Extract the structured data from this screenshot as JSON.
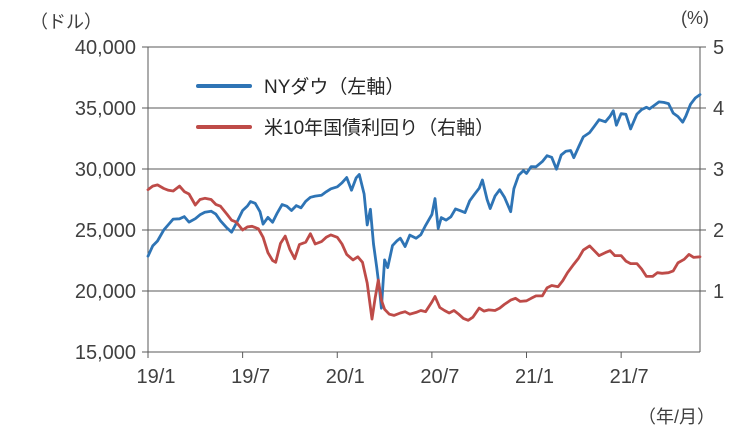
{
  "chart_data": {
    "type": "line",
    "title": "",
    "x_unit_note": "x values are months since 2019-01",
    "x_max": 35,
    "x_axis_unit": "（年/月）",
    "x_ticks": [
      {
        "t": 0,
        "label": "19/1"
      },
      {
        "t": 6,
        "label": "19/7"
      },
      {
        "t": 12,
        "label": "20/1"
      },
      {
        "t": 18,
        "label": "20/7"
      },
      {
        "t": 24,
        "label": "21/1"
      },
      {
        "t": 30,
        "label": "21/7"
      }
    ],
    "left_axis": {
      "unit": "（ドル）",
      "lim": [
        15000,
        40000
      ],
      "ticks": [
        {
          "v": 40000,
          "label": "40,000"
        },
        {
          "v": 35000,
          "label": "35,000"
        },
        {
          "v": 30000,
          "label": "30,000"
        },
        {
          "v": 25000,
          "label": "25,000"
        },
        {
          "v": 20000,
          "label": "20,000"
        },
        {
          "v": 15000,
          "label": "15,000"
        }
      ]
    },
    "right_axis": {
      "unit": "(%)",
      "lim": [
        0,
        5
      ],
      "ticks": [
        {
          "v": 5,
          "label": "5"
        },
        {
          "v": 4,
          "label": "4"
        },
        {
          "v": 3,
          "label": "3"
        },
        {
          "v": 2,
          "label": "2"
        },
        {
          "v": 1,
          "label": "1"
        }
      ]
    },
    "grid": "horizontal",
    "legend_position": "top-center-inside",
    "colors": {
      "grid": "#595959",
      "text": "#404040"
    },
    "series": [
      {
        "id": "nydow",
        "name": "NYダウ（左軸）",
        "axis": "left",
        "color": "#2E74B5",
        "points": [
          [
            0,
            22850
          ],
          [
            0.3,
            23700
          ],
          [
            0.6,
            24100
          ],
          [
            1,
            25010
          ],
          [
            1.3,
            25450
          ],
          [
            1.6,
            25890
          ],
          [
            2,
            25920
          ],
          [
            2.3,
            26100
          ],
          [
            2.6,
            25650
          ],
          [
            3,
            25930
          ],
          [
            3.3,
            26250
          ],
          [
            3.6,
            26450
          ],
          [
            4,
            26540
          ],
          [
            4.3,
            26300
          ],
          [
            4.6,
            25750
          ],
          [
            5,
            25170
          ],
          [
            5.3,
            24820
          ],
          [
            5.6,
            25540
          ],
          [
            6,
            26600
          ],
          [
            6.3,
            26970
          ],
          [
            6.5,
            27330
          ],
          [
            6.8,
            27190
          ],
          [
            7.1,
            26500
          ],
          [
            7.3,
            25480
          ],
          [
            7.6,
            26030
          ],
          [
            7.9,
            25630
          ],
          [
            8.2,
            26400
          ],
          [
            8.5,
            27080
          ],
          [
            8.8,
            26950
          ],
          [
            9.1,
            26600
          ],
          [
            9.4,
            27000
          ],
          [
            9.7,
            26820
          ],
          [
            10,
            27350
          ],
          [
            10.3,
            27680
          ],
          [
            10.6,
            27780
          ],
          [
            11,
            27850
          ],
          [
            11.3,
            28130
          ],
          [
            11.6,
            28380
          ],
          [
            12,
            28540
          ],
          [
            12.3,
            28870
          ],
          [
            12.6,
            29300
          ],
          [
            12.9,
            28260
          ],
          [
            13.2,
            29280
          ],
          [
            13.4,
            29550
          ],
          [
            13.7,
            27960
          ],
          [
            13.9,
            25410
          ],
          [
            14.1,
            26700
          ],
          [
            14.3,
            23850
          ],
          [
            14.5,
            21950
          ],
          [
            14.7,
            19900
          ],
          [
            14.8,
            18590
          ],
          [
            15,
            22550
          ],
          [
            15.2,
            21920
          ],
          [
            15.5,
            23720
          ],
          [
            15.8,
            24130
          ],
          [
            16,
            24330
          ],
          [
            16.3,
            23650
          ],
          [
            16.6,
            24580
          ],
          [
            17,
            24330
          ],
          [
            17.3,
            24610
          ],
          [
            17.6,
            25380
          ],
          [
            18,
            26270
          ],
          [
            18.2,
            27570
          ],
          [
            18.4,
            25130
          ],
          [
            18.6,
            26020
          ],
          [
            18.9,
            25810
          ],
          [
            19.2,
            26070
          ],
          [
            19.5,
            26730
          ],
          [
            19.8,
            26580
          ],
          [
            20.1,
            26430
          ],
          [
            20.4,
            27390
          ],
          [
            20.7,
            27930
          ],
          [
            21,
            28430
          ],
          [
            21.2,
            29100
          ],
          [
            21.5,
            27500
          ],
          [
            21.7,
            26760
          ],
          [
            22,
            27780
          ],
          [
            22.3,
            28300
          ],
          [
            22.6,
            27700
          ],
          [
            23,
            26500
          ],
          [
            23.2,
            28390
          ],
          [
            23.5,
            29480
          ],
          [
            23.8,
            29870
          ],
          [
            24,
            29640
          ],
          [
            24.3,
            30200
          ],
          [
            24.6,
            30180
          ],
          [
            25,
            30610
          ],
          [
            25.3,
            31090
          ],
          [
            25.6,
            30960
          ],
          [
            25.9,
            29980
          ],
          [
            26.2,
            31150
          ],
          [
            26.5,
            31460
          ],
          [
            26.8,
            31520
          ],
          [
            27,
            30930
          ],
          [
            27.3,
            31800
          ],
          [
            27.6,
            32630
          ],
          [
            28,
            32980
          ],
          [
            28.3,
            33500
          ],
          [
            28.6,
            34040
          ],
          [
            29,
            33870
          ],
          [
            29.3,
            34330
          ],
          [
            29.5,
            34780
          ],
          [
            29.7,
            33590
          ],
          [
            30,
            34530
          ],
          [
            30.3,
            34480
          ],
          [
            30.6,
            33290
          ],
          [
            31,
            34500
          ],
          [
            31.3,
            34870
          ],
          [
            31.6,
            35060
          ],
          [
            31.8,
            34930
          ],
          [
            32.1,
            35210
          ],
          [
            32.4,
            35500
          ],
          [
            32.7,
            35460
          ],
          [
            33,
            35360
          ],
          [
            33.3,
            34580
          ],
          [
            33.6,
            34300
          ],
          [
            33.9,
            33840
          ],
          [
            34.1,
            34330
          ],
          [
            34.4,
            35300
          ],
          [
            34.7,
            35820
          ],
          [
            35,
            36100
          ]
        ]
      },
      {
        "id": "us10y",
        "name": "米10年国債利回り（右軸）",
        "axis": "right",
        "color": "#BE4B48",
        "points": [
          [
            0,
            2.66
          ],
          [
            0.3,
            2.72
          ],
          [
            0.6,
            2.74
          ],
          [
            1,
            2.68
          ],
          [
            1.3,
            2.65
          ],
          [
            1.6,
            2.64
          ],
          [
            2,
            2.72
          ],
          [
            2.3,
            2.63
          ],
          [
            2.6,
            2.59
          ],
          [
            3,
            2.41
          ],
          [
            3.3,
            2.5
          ],
          [
            3.6,
            2.52
          ],
          [
            4,
            2.5
          ],
          [
            4.3,
            2.42
          ],
          [
            4.6,
            2.39
          ],
          [
            5,
            2.26
          ],
          [
            5.3,
            2.16
          ],
          [
            5.6,
            2.13
          ],
          [
            6,
            2.0
          ],
          [
            6.3,
            2.05
          ],
          [
            6.6,
            2.06
          ],
          [
            7,
            2.02
          ],
          [
            7.3,
            1.88
          ],
          [
            7.6,
            1.63
          ],
          [
            7.9,
            1.5
          ],
          [
            8.1,
            1.47
          ],
          [
            8.4,
            1.78
          ],
          [
            8.7,
            1.9
          ],
          [
            9,
            1.68
          ],
          [
            9.3,
            1.53
          ],
          [
            9.6,
            1.76
          ],
          [
            10,
            1.8
          ],
          [
            10.3,
            1.94
          ],
          [
            10.6,
            1.77
          ],
          [
            11,
            1.81
          ],
          [
            11.3,
            1.88
          ],
          [
            11.6,
            1.92
          ],
          [
            12,
            1.88
          ],
          [
            12.3,
            1.77
          ],
          [
            12.6,
            1.6
          ],
          [
            13,
            1.51
          ],
          [
            13.3,
            1.56
          ],
          [
            13.6,
            1.47
          ],
          [
            13.9,
            1.13
          ],
          [
            14.2,
            0.54
          ],
          [
            14.4,
            0.88
          ],
          [
            14.6,
            1.18
          ],
          [
            14.8,
            0.85
          ],
          [
            15,
            0.7
          ],
          [
            15.3,
            0.62
          ],
          [
            15.6,
            0.6
          ],
          [
            16,
            0.64
          ],
          [
            16.3,
            0.66
          ],
          [
            16.6,
            0.62
          ],
          [
            17,
            0.65
          ],
          [
            17.3,
            0.68
          ],
          [
            17.6,
            0.66
          ],
          [
            18,
            0.82
          ],
          [
            18.2,
            0.91
          ],
          [
            18.5,
            0.73
          ],
          [
            18.8,
            0.68
          ],
          [
            19.1,
            0.64
          ],
          [
            19.4,
            0.68
          ],
          [
            19.7,
            0.62
          ],
          [
            20,
            0.55
          ],
          [
            20.3,
            0.52
          ],
          [
            20.6,
            0.57
          ],
          [
            21,
            0.72
          ],
          [
            21.3,
            0.67
          ],
          [
            21.6,
            0.69
          ],
          [
            22,
            0.68
          ],
          [
            22.3,
            0.72
          ],
          [
            22.6,
            0.78
          ],
          [
            23,
            0.85
          ],
          [
            23.3,
            0.88
          ],
          [
            23.6,
            0.83
          ],
          [
            24,
            0.84
          ],
          [
            24.3,
            0.88
          ],
          [
            24.6,
            0.92
          ],
          [
            25,
            0.92
          ],
          [
            25.3,
            1.05
          ],
          [
            25.6,
            1.09
          ],
          [
            26,
            1.07
          ],
          [
            26.3,
            1.17
          ],
          [
            26.6,
            1.3
          ],
          [
            27,
            1.44
          ],
          [
            27.3,
            1.54
          ],
          [
            27.6,
            1.67
          ],
          [
            28,
            1.74
          ],
          [
            28.3,
            1.66
          ],
          [
            28.6,
            1.58
          ],
          [
            29,
            1.63
          ],
          [
            29.3,
            1.66
          ],
          [
            29.6,
            1.58
          ],
          [
            30,
            1.58
          ],
          [
            30.3,
            1.49
          ],
          [
            30.6,
            1.45
          ],
          [
            31,
            1.45
          ],
          [
            31.3,
            1.36
          ],
          [
            31.6,
            1.24
          ],
          [
            32,
            1.24
          ],
          [
            32.3,
            1.3
          ],
          [
            32.6,
            1.29
          ],
          [
            33,
            1.3
          ],
          [
            33.3,
            1.33
          ],
          [
            33.6,
            1.46
          ],
          [
            34,
            1.52
          ],
          [
            34.3,
            1.6
          ],
          [
            34.6,
            1.55
          ],
          [
            35,
            1.56
          ]
        ]
      }
    ]
  }
}
